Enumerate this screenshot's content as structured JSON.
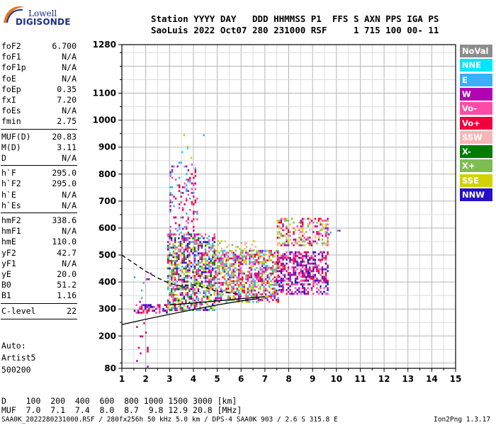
{
  "logo": {
    "top": "Lowell",
    "bottom": "DIGISONDE"
  },
  "header": {
    "line1": "Station YYYY DAY   DDD HHMMSS P1  FFS S AXN PPS IGA PS",
    "line2": "SaoLuis 2022 Oct07 280 231000 RSF     1 715 100 00- 11"
  },
  "params": [
    {
      "group": 1,
      "name": "foF2",
      "value": "6.700"
    },
    {
      "group": 1,
      "name": "foF1",
      "value": "N/A"
    },
    {
      "group": 1,
      "name": "foF1p",
      "value": "N/A"
    },
    {
      "group": 1,
      "name": "foE",
      "value": "N/A"
    },
    {
      "group": 1,
      "name": "foEp",
      "value": "0.35"
    },
    {
      "group": 1,
      "name": "fxI",
      "value": "7.20"
    },
    {
      "group": 1,
      "name": "foEs",
      "value": "N/A"
    },
    {
      "group": 1,
      "name": "fmin",
      "value": "2.75"
    },
    {
      "group": 2,
      "name": "MUF(D)",
      "value": "20.83"
    },
    {
      "group": 2,
      "name": "M(D)",
      "value": "3.11"
    },
    {
      "group": 2,
      "name": "D",
      "value": "N/A"
    },
    {
      "group": 3,
      "name": "h`F",
      "value": "295.0"
    },
    {
      "group": 3,
      "name": "h`F2",
      "value": "295.0"
    },
    {
      "group": 3,
      "name": "h`E",
      "value": "N/A"
    },
    {
      "group": 3,
      "name": "h`Es",
      "value": "N/A"
    },
    {
      "group": 4,
      "name": "hmF2",
      "value": "338.6"
    },
    {
      "group": 4,
      "name": "hmF1",
      "value": "N/A"
    },
    {
      "group": 4,
      "name": "hmE",
      "value": "110.0"
    },
    {
      "group": 4,
      "name": "yF2",
      "value": "42.7"
    },
    {
      "group": 4,
      "name": "yF1",
      "value": "N/A"
    },
    {
      "group": 4,
      "name": "yE",
      "value": "20.0"
    },
    {
      "group": 4,
      "name": "B0",
      "value": "51.2"
    },
    {
      "group": 4,
      "name": "B1",
      "value": "1.16"
    },
    {
      "group": 5,
      "name": "C-level",
      "value": "22"
    }
  ],
  "auto": {
    "l1": "Auto:",
    "l2": "Artist5",
    "l3": "500200"
  },
  "muf_table": {
    "row1": "D    100  200  400  600  800 1000 1500 3000 [km]",
    "row2": "MUF  7.0  7.1  7.4  8.0  8.7  9.8 12.9 20.8 [MHz]"
  },
  "footer": {
    "left": "SAA0K_2022280231000.RSF / 280fx256h 50 kHz 5.0 km / DPS-4 SAA0K 903 / 2.6 S 315.8 E",
    "right": "Ion2Png 1.3.17"
  },
  "legend": [
    {
      "label": "NoVal",
      "color": "#8c8c8c"
    },
    {
      "label": "NNE",
      "color": "#00e6ff"
    },
    {
      "label": "E",
      "color": "#3aaeff"
    },
    {
      "label": "W",
      "color": "#b400b4"
    },
    {
      "label": "Vo-",
      "color": "#ff4ba8"
    },
    {
      "label": "Vo+",
      "color": "#f0003c"
    },
    {
      "label": "SSW",
      "color": "#f7b6b6"
    },
    {
      "label": "X-",
      "color": "#007d00"
    },
    {
      "label": "X+",
      "color": "#7dbe50"
    },
    {
      "label": "SSE",
      "color": "#d2d200"
    },
    {
      "label": "NNW",
      "color": "#2410c8"
    }
  ],
  "chart_data": {
    "type": "scatter",
    "title": "",
    "xlabel": "",
    "ylabel": "",
    "xlim": [
      1,
      15
    ],
    "ylim": [
      80,
      1280
    ],
    "xticks": [
      1,
      2,
      3,
      4,
      5,
      6,
      7,
      8,
      9,
      10,
      11,
      12,
      13,
      14,
      15
    ],
    "yticks": [
      80,
      200,
      300,
      400,
      500,
      600,
      700,
      800,
      900,
      1000,
      1100,
      1280
    ],
    "grid": true,
    "clusters": [
      {
        "fmin": 1.5,
        "fmax": 2.9,
        "hmin": 290,
        "hmax": 320,
        "density": 0.55,
        "colors": [
          "#b400b4",
          "#f0003c",
          "#2410c8",
          "#ff4ba8"
        ]
      },
      {
        "fmin": 1.5,
        "fmax": 2.2,
        "hmin": 330,
        "hmax": 440,
        "density": 0.06,
        "colors": [
          "#b400b4",
          "#3aaeff",
          "#f0003c"
        ]
      },
      {
        "fmin": 1.6,
        "fmax": 2.1,
        "hmin": 90,
        "hmax": 280,
        "density": 0.04,
        "colors": [
          "#b400b4",
          "#f0003c"
        ]
      },
      {
        "fmin": 2.9,
        "fmax": 4.9,
        "hmin": 300,
        "hmax": 580,
        "density": 0.55,
        "colors": [
          "#b400b4",
          "#f0003c",
          "#ff4ba8",
          "#2410c8",
          "#d2d200",
          "#7dbe50",
          "#3aaeff",
          "#007d00"
        ]
      },
      {
        "fmin": 3.0,
        "fmax": 4.2,
        "hmin": 580,
        "hmax": 850,
        "density": 0.2,
        "colors": [
          "#b400b4",
          "#ff4ba8",
          "#f0003c",
          "#3aaeff"
        ]
      },
      {
        "fmin": 3.5,
        "fmax": 4.7,
        "hmin": 850,
        "hmax": 950,
        "density": 0.03,
        "colors": [
          "#3aaeff",
          "#00e6ff",
          "#d2d200"
        ]
      },
      {
        "fmin": 4.9,
        "fmax": 7.6,
        "hmin": 330,
        "hmax": 520,
        "density": 0.55,
        "colors": [
          "#f0003c",
          "#ff4ba8",
          "#b400b4",
          "#d2d200",
          "#7dbe50",
          "#3aaeff"
        ]
      },
      {
        "fmin": 5.0,
        "fmax": 6.6,
        "hmin": 520,
        "hmax": 560,
        "density": 0.2,
        "colors": [
          "#d2d200",
          "#f7b6b6",
          "#7dbe50"
        ]
      },
      {
        "fmin": 7.5,
        "fmax": 9.6,
        "hmin": 360,
        "hmax": 520,
        "density": 0.5,
        "colors": [
          "#f0003c",
          "#ff4ba8",
          "#b400b4",
          "#2410c8"
        ]
      },
      {
        "fmin": 7.5,
        "fmax": 9.6,
        "hmin": 540,
        "hmax": 640,
        "density": 0.35,
        "colors": [
          "#d2d200",
          "#f7b6b6",
          "#ff4ba8",
          "#b400b4",
          "#f0003c",
          "#7dbe50"
        ]
      },
      {
        "fmin": 9.5,
        "fmax": 10.1,
        "hmin": 580,
        "hmax": 600,
        "density": 0.2,
        "colors": [
          "#3aaeff",
          "#f0003c"
        ]
      }
    ],
    "trace_points": [
      {
        "x": 1.0,
        "y": 500
      },
      {
        "x": 1.5,
        "y": 470
      },
      {
        "x": 2.0,
        "y": 440
      },
      {
        "x": 2.5,
        "y": 415
      },
      {
        "x": 3.0,
        "y": 395
      },
      {
        "x": 3.5,
        "y": 385
      },
      {
        "x": 4.0,
        "y": 390
      },
      {
        "x": 4.5,
        "y": 380
      },
      {
        "x": 5.0,
        "y": 365
      },
      {
        "x": 5.5,
        "y": 360
      },
      {
        "x": 6.0,
        "y": 355
      }
    ],
    "profile_points": [
      {
        "x": 1.0,
        "y": 242
      },
      {
        "x": 2.0,
        "y": 262
      },
      {
        "x": 3.0,
        "y": 280
      },
      {
        "x": 4.0,
        "y": 298
      },
      {
        "x": 5.0,
        "y": 315
      },
      {
        "x": 6.0,
        "y": 330
      },
      {
        "x": 6.7,
        "y": 338
      }
    ],
    "profile_points2": [
      {
        "x": 3.0,
        "y": 315
      },
      {
        "x": 4.0,
        "y": 322
      },
      {
        "x": 5.0,
        "y": 330
      },
      {
        "x": 6.0,
        "y": 338
      },
      {
        "x": 7.0,
        "y": 346
      }
    ]
  }
}
